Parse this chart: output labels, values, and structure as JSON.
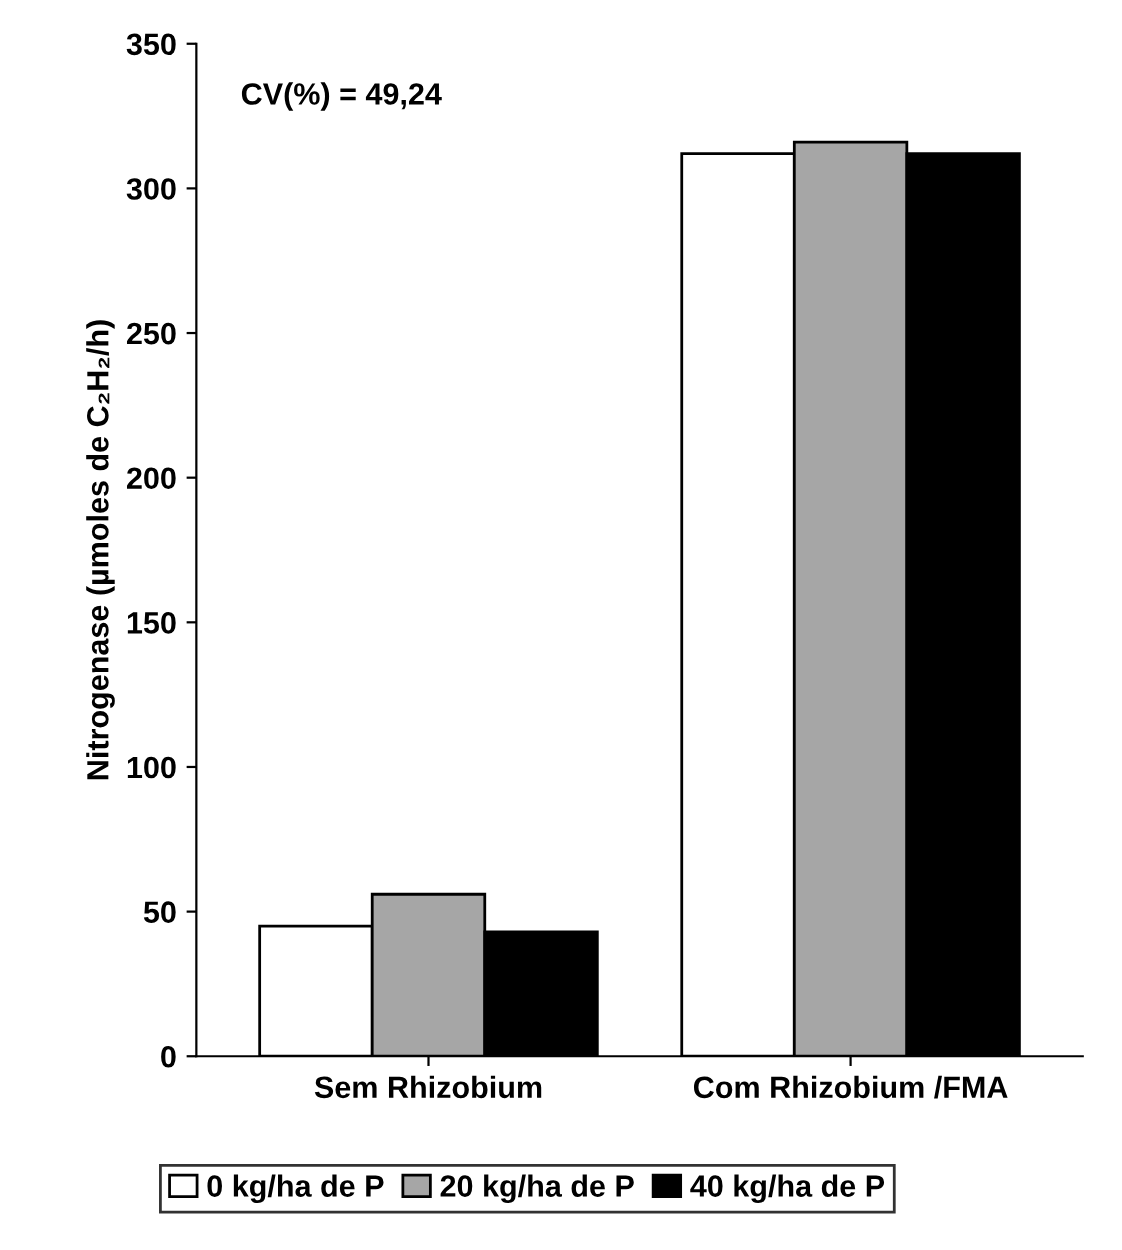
{
  "chart_data": {
    "type": "bar",
    "ylabel": "Nitrogenase (µmoles de C₂H₂/h)",
    "categories": [
      "Sem Rhizobium",
      "Com Rhizobium /FMA"
    ],
    "series": [
      {
        "name": "0 kg/ha de P",
        "color": "#ffffff",
        "values": [
          45,
          312
        ]
      },
      {
        "name": "20 kg/ha de P",
        "color": "#a6a6a6",
        "values": [
          56,
          316
        ]
      },
      {
        "name": "40 kg/ha de P",
        "color": "#000000",
        "values": [
          43,
          312
        ]
      }
    ],
    "ylim": [
      0,
      350
    ],
    "yticks": [
      0,
      50,
      100,
      150,
      200,
      250,
      300,
      350
    ],
    "annotations": [
      "CV(%) = 49,24"
    ],
    "legend": "bottom",
    "grid": false
  }
}
